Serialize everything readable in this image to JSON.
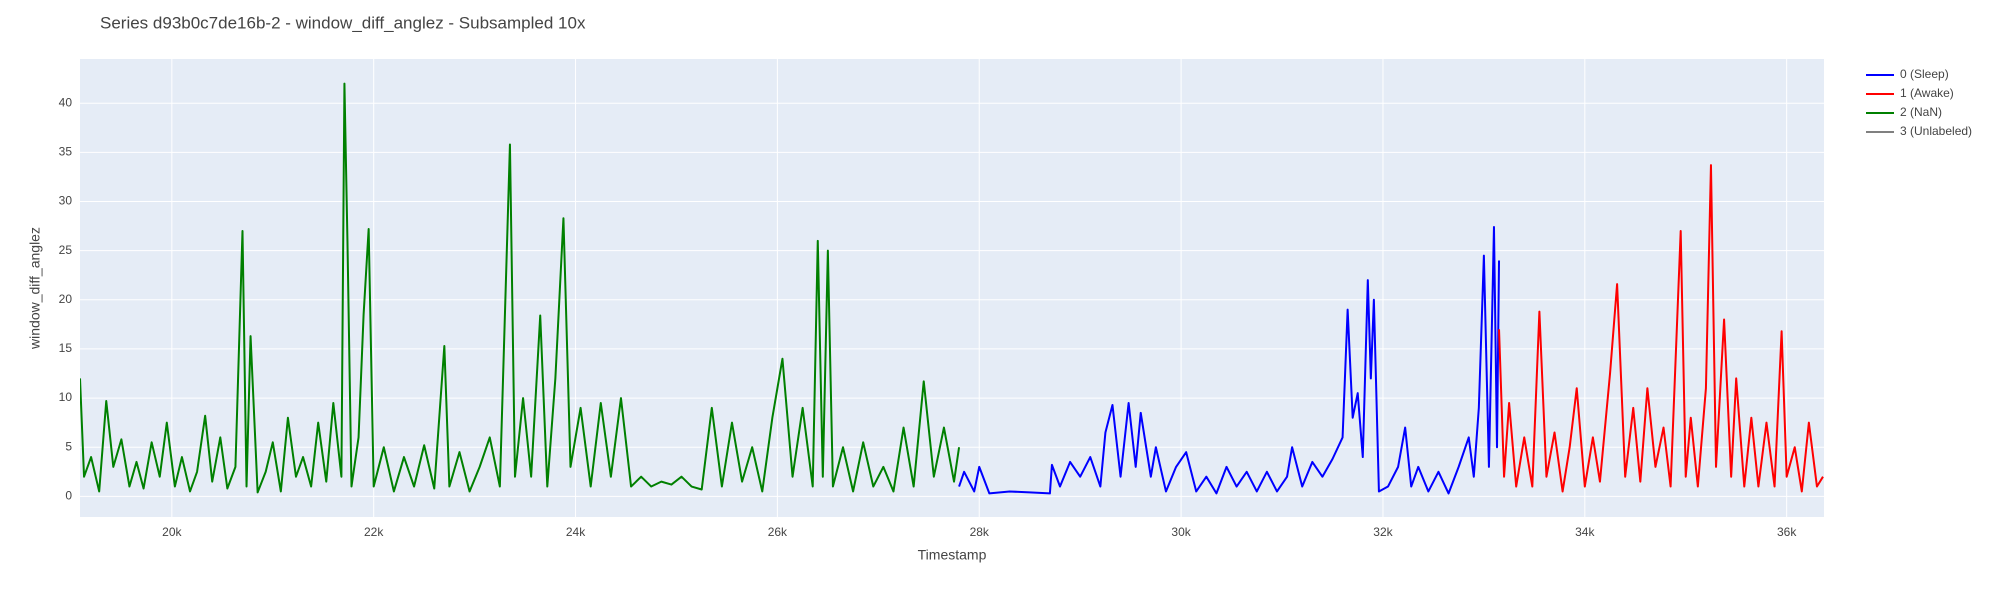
{
  "chart_data": {
    "type": "line",
    "title": "Series d93b0c7de16b-2 - window_diff_anglez - Subsampled 10x",
    "x_label": "Timestamp",
    "y_label": "window_diff_anglez",
    "xlim": [
      19090,
      36370
    ],
    "ylim": [
      -2.1,
      44.5
    ],
    "xticks": [
      {
        "value": 20000,
        "label": "20k"
      },
      {
        "value": 22000,
        "label": "22k"
      },
      {
        "value": 24000,
        "label": "24k"
      },
      {
        "value": 26000,
        "label": "26k"
      },
      {
        "value": 28000,
        "label": "28k"
      },
      {
        "value": 30000,
        "label": "30k"
      },
      {
        "value": 32000,
        "label": "32k"
      },
      {
        "value": 34000,
        "label": "34k"
      },
      {
        "value": 36000,
        "label": "36k"
      }
    ],
    "yticks": [
      0,
      5,
      10,
      15,
      20,
      25,
      30,
      35,
      40
    ],
    "grid": true,
    "legend": "right",
    "series": [
      {
        "name": "0 (Sleep)",
        "color": "#0000ff",
        "x": [
          27800,
          27850,
          27950,
          28000,
          28100,
          28300,
          28500,
          28700,
          28720,
          28800,
          28900,
          29000,
          29100,
          29200,
          29250,
          29320,
          29400,
          29480,
          29550,
          29600,
          29700,
          29750,
          29850,
          29950,
          30050,
          30150,
          30250,
          30350,
          30450,
          30550,
          30650,
          30750,
          30850,
          30950,
          31050,
          31100,
          31200,
          31300,
          31400,
          31500,
          31600,
          31650,
          31700,
          31750,
          31800,
          31850,
          31880,
          31910,
          31960,
          32050,
          32150,
          32220,
          32280,
          32350,
          32450,
          32550,
          32650,
          32750,
          32850,
          32900,
          32950,
          33000,
          33050,
          33100,
          33130,
          33150
        ],
        "values": [
          1,
          2.5,
          0.5,
          3,
          0.3,
          0.5,
          0.4,
          0.3,
          3.2,
          1,
          3.5,
          2,
          4,
          1,
          6.5,
          9.3,
          2,
          9.5,
          3,
          8.5,
          2,
          5,
          0.5,
          3,
          4.5,
          0.5,
          2,
          0.3,
          3,
          1,
          2.5,
          0.5,
          2.5,
          0.5,
          2,
          5,
          1,
          3.5,
          2,
          3.8,
          6,
          19,
          8,
          10.5,
          4,
          22,
          12,
          20,
          0.5,
          1,
          3,
          7,
          1,
          3,
          0.5,
          2.5,
          0.3,
          3,
          6,
          2,
          9,
          24.5,
          3,
          27.4,
          5,
          24
        ]
      },
      {
        "name": "1 (Awake)",
        "color": "#ff0000",
        "x": [
          33150,
          33200,
          33250,
          33320,
          33400,
          33480,
          33550,
          33620,
          33700,
          33780,
          33850,
          33920,
          34000,
          34080,
          34150,
          34250,
          34320,
          34400,
          34480,
          34550,
          34620,
          34700,
          34780,
          34850,
          34950,
          35000,
          35050,
          35120,
          35200,
          35250,
          35300,
          35380,
          35450,
          35500,
          35580,
          35650,
          35720,
          35800,
          35880,
          35950,
          36000,
          36080,
          36150,
          36220,
          36300,
          36360
        ],
        "values": [
          17,
          2,
          9.5,
          1,
          6,
          1,
          18.8,
          2,
          6.5,
          0.5,
          5,
          11,
          1,
          6,
          1.5,
          12.5,
          21.6,
          2,
          9,
          1.5,
          11,
          3,
          7,
          1,
          27,
          2,
          8,
          1,
          11,
          33.7,
          3,
          18,
          2,
          12,
          1,
          8,
          1,
          7.5,
          1,
          16.8,
          2,
          5,
          0.5,
          7.5,
          1,
          2
        ]
      },
      {
        "name": "2 (NaN)",
        "color": "#008000",
        "x": [
          19090,
          19130,
          19200,
          19280,
          19350,
          19420,
          19500,
          19580,
          19650,
          19720,
          19800,
          19880,
          19950,
          20030,
          20100,
          20180,
          20250,
          20330,
          20400,
          20480,
          20550,
          20630,
          20700,
          20740,
          20780,
          20850,
          20930,
          21000,
          21080,
          21150,
          21230,
          21300,
          21380,
          21450,
          21530,
          21600,
          21680,
          21710,
          21740,
          21780,
          21850,
          21900,
          21950,
          22000,
          22100,
          22200,
          22300,
          22400,
          22500,
          22600,
          22700,
          22750,
          22850,
          22950,
          23050,
          23150,
          23250,
          23350,
          23400,
          23480,
          23560,
          23650,
          23720,
          23800,
          23880,
          23950,
          24050,
          24150,
          24250,
          24350,
          24450,
          24550,
          24650,
          24750,
          24850,
          24950,
          25050,
          25150,
          25250,
          25350,
          25450,
          25550,
          25650,
          25750,
          25850,
          25950,
          26050,
          26150,
          26250,
          26350,
          26400,
          26450,
          26500,
          26550,
          26650,
          26750,
          26850,
          26950,
          27050,
          27150,
          27250,
          27350,
          27450,
          27550,
          27650,
          27750,
          27800
        ],
        "values": [
          12,
          2,
          4,
          0.5,
          9.7,
          3,
          5.8,
          1,
          3.5,
          0.8,
          5.5,
          2,
          7.5,
          1,
          4,
          0.5,
          2.5,
          8.2,
          1.5,
          6,
          0.8,
          3,
          27,
          1,
          16.3,
          0.4,
          2.5,
          5.5,
          0.5,
          8,
          2,
          4,
          1,
          7.5,
          1.5,
          9.5,
          2,
          42,
          26,
          1,
          6,
          18.5,
          27.2,
          1,
          5,
          0.5,
          4,
          1,
          5.2,
          0.8,
          15.3,
          1,
          4.5,
          0.5,
          3,
          6,
          1,
          35.8,
          2,
          10,
          2,
          18.4,
          1,
          12,
          28.3,
          3,
          9,
          1,
          9.5,
          2,
          10,
          1,
          2,
          1,
          1.5,
          1.2,
          2,
          1,
          0.7,
          9,
          1,
          7.5,
          1.5,
          5,
          0.5,
          8,
          14,
          2,
          9,
          1,
          26,
          2,
          25,
          1,
          5,
          0.5,
          5.5,
          1,
          3,
          0.5,
          7,
          1,
          11.7,
          2,
          7,
          1.5,
          5
        ]
      },
      {
        "name": "3 (Unlabeled)",
        "color": "#808080",
        "x": [],
        "values": []
      }
    ]
  }
}
